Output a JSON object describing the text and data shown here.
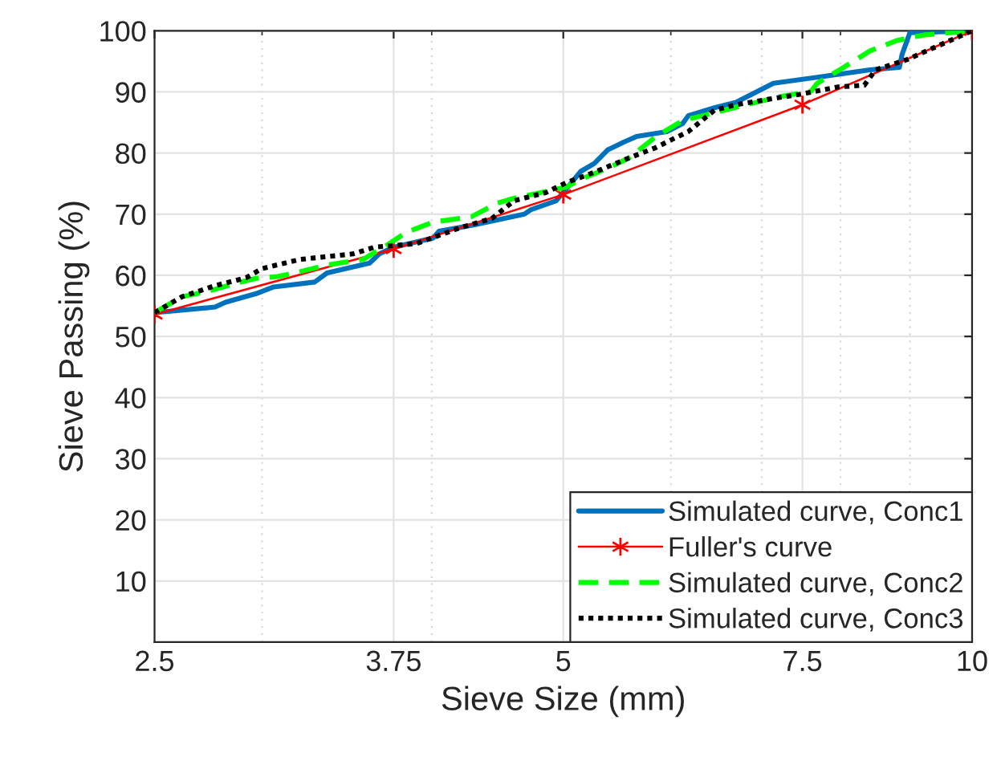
{
  "chart_data": {
    "type": "line",
    "xlabel": "Sieve Size (mm)",
    "ylabel": "Sieve Passing (%)",
    "log": "x",
    "xlim": [
      2.5,
      10
    ],
    "xticks": [
      2.5,
      3.75,
      5,
      7.5,
      10
    ],
    "ylim": [
      0,
      100
    ],
    "yticks": [
      10,
      20,
      30,
      40,
      50,
      60,
      70,
      80,
      90,
      100
    ],
    "grid": true,
    "legend": "bottom right",
    "series": [
      {
        "name": "Simulated curve, Conc1",
        "color": "#0072bd",
        "line_style": "solid",
        "marker": "none",
        "x": [
          2.5,
          2.77,
          2.82,
          2.97,
          3.06,
          3.28,
          3.35,
          3.6,
          3.66,
          3.75,
          4.01,
          4.05,
          4.31,
          4.68,
          4.73,
          4.94,
          5.02,
          5.15,
          5.27,
          5.39,
          5.54,
          5.66,
          5.96,
          6.12,
          6.18,
          6.46,
          6.7,
          7.14,
          7.75,
          8.41,
          8.84,
          8.88,
          9.0,
          10
        ],
        "values": [
          53.9,
          54.8,
          55.6,
          57.0,
          58.1,
          58.9,
          60.4,
          62.0,
          63.5,
          64.6,
          66.1,
          67.2,
          68.3,
          70.0,
          70.7,
          72.2,
          74.0,
          77.0,
          78.3,
          80.5,
          81.8,
          82.7,
          83.5,
          84.8,
          86.1,
          87.4,
          88.3,
          91.4,
          92.5,
          93.6,
          94.0,
          96.1,
          99.7,
          100
        ]
      },
      {
        "name": "Fuller's curve",
        "color": "#ff0000",
        "line_style": "solid",
        "marker": "cross",
        "x": [
          2.5,
          3.75,
          5,
          7.5,
          10
        ],
        "values": [
          53.6,
          64.3,
          73.2,
          87.9,
          100
        ]
      },
      {
        "name": "Simulated curve, Conc2",
        "color": "#00ff00",
        "line_style": "dashed",
        "marker": "none",
        "x": [
          2.5,
          2.62,
          2.74,
          2.87,
          2.97,
          3.08,
          3.2,
          3.35,
          3.56,
          3.7,
          3.83,
          4.01,
          4.28,
          4.47,
          4.6,
          4.85,
          5.02,
          5.2,
          5.39,
          5.59,
          5.85,
          6.12,
          6.46,
          6.82,
          7.21,
          7.61,
          7.69,
          8.04,
          8.41,
          8.8,
          9.21,
          10
        ],
        "values": [
          53.9,
          56.5,
          57.4,
          58.7,
          59.5,
          59.8,
          60.6,
          61.7,
          62.6,
          64.8,
          67.0,
          68.7,
          69.6,
          71.8,
          72.6,
          73.7,
          74.4,
          76.1,
          77.5,
          79.2,
          82.7,
          85.3,
          86.6,
          87.9,
          89.2,
          90.1,
          91.4,
          94.0,
          96.7,
          98.4,
          99.3,
          100
        ]
      },
      {
        "name": "Simulated curve, Conc3",
        "color": "#000000",
        "line_style": "dotted",
        "marker": "none",
        "x": [
          2.5,
          2.62,
          2.77,
          2.92,
          3.0,
          3.2,
          3.5,
          3.63,
          3.9,
          4.2,
          4.43,
          4.6,
          4.85,
          5.02,
          5.29,
          5.59,
          5.85,
          6.01,
          6.18,
          6.46,
          6.7,
          7.08,
          7.47,
          7.96,
          8.33,
          8.49,
          8.96,
          10
        ],
        "values": [
          53.9,
          56.5,
          58.3,
          59.6,
          61.1,
          62.6,
          63.5,
          64.6,
          65.2,
          67.8,
          69.3,
          72.2,
          73.5,
          75.1,
          77.0,
          79.2,
          80.9,
          82.2,
          83.5,
          87.0,
          87.9,
          88.8,
          89.6,
          90.8,
          91.1,
          93.6,
          95.3,
          100
        ]
      }
    ]
  }
}
